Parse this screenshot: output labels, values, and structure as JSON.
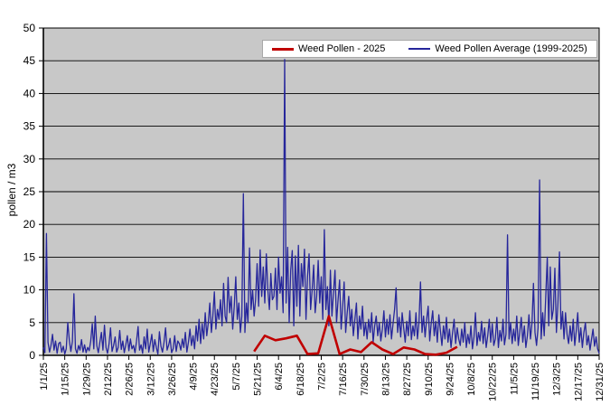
{
  "chart_data": {
    "type": "line",
    "title": "",
    "xlabel": "",
    "ylabel": "pollen / m3",
    "ylim": [
      0,
      50
    ],
    "y_ticks": [
      0,
      5,
      10,
      15,
      20,
      25,
      30,
      35,
      40,
      45,
      50
    ],
    "grid": "horizontal-black-on-gray",
    "plot_bg": "#c8c8c8",
    "legend_position": "top-center-inside",
    "x_tick_interval_days": 14,
    "x_tick_labels": [
      "1/1/25",
      "1/15/25",
      "1/29/25",
      "2/12/25",
      "2/26/25",
      "3/12/25",
      "3/26/25",
      "4/9/25",
      "4/23/25",
      "5/7/25",
      "5/21/25",
      "6/4/25",
      "6/18/25",
      "7/2/25",
      "7/16/25",
      "7/30/25",
      "8/13/25",
      "8/27/25",
      "9/10/25",
      "9/24/25",
      "10/8/25",
      "10/22/25",
      "11/5/25",
      "11/19/25",
      "12/3/25",
      "12/17/25",
      "12/31/25"
    ],
    "series": [
      {
        "name": "Weed Pollen - 2025",
        "color": "#c00000",
        "cadence": "weekly",
        "start_day_index": 138,
        "dates": [
          "5/19/25",
          "5/26/25",
          "6/2/25",
          "6/9/25",
          "6/16/25",
          "6/23/25",
          "6/30/25",
          "7/7/25",
          "7/14/25",
          "7/21/25",
          "7/28/25",
          "8/4/25",
          "8/11/25",
          "8/18/25",
          "8/25/25",
          "9/1/25",
          "9/8/25",
          "9/15/25",
          "9/22/25",
          "9/29/25"
        ],
        "values": [
          0.6,
          3.0,
          2.3,
          2.6,
          3.0,
          0.2,
          0.3,
          6.0,
          0.2,
          0.9,
          0.5,
          2.0,
          0.9,
          0.2,
          1.2,
          0.9,
          0.2,
          0.1,
          0.4,
          1.3
        ]
      },
      {
        "name": "Weed Pollen Average (1999-2025)",
        "color": "#26269b",
        "cadence": "daily",
        "start_date": "1/1/25",
        "end_date": "12/31/25",
        "start_day_index": 0,
        "values": [
          1.2,
          0.4,
          18.6,
          2.0,
          0.5,
          1.5,
          3.2,
          0.8,
          2.2,
          0.3,
          1.8,
          2.0,
          0.5,
          1.4,
          0.2,
          1.0,
          5.0,
          2.3,
          0.6,
          2.1,
          9.4,
          1.0,
          0.3,
          1.5,
          0.8,
          2.4,
          0.5,
          1.6,
          0.4,
          1.2,
          0.7,
          2.2,
          4.8,
          1.0,
          6.0,
          1.5,
          0.4,
          2.0,
          3.5,
          0.8,
          4.6,
          1.2,
          0.3,
          1.8,
          4.2,
          0.6,
          1.5,
          2.8,
          0.5,
          1.2,
          3.8,
          0.9,
          2.2,
          0.4,
          1.6,
          3.0,
          0.7,
          2.5,
          1.0,
          1.5,
          0.4,
          2.2,
          4.4,
          0.8,
          1.6,
          0.3,
          2.8,
          1.0,
          4.0,
          0.5,
          1.8,
          3.2,
          0.6,
          2.4,
          1.2,
          0.2,
          3.6,
          1.4,
          0.5,
          2.0,
          4.2,
          0.8,
          1.5,
          2.6,
          0.4,
          1.0,
          3.0,
          0.6,
          2.2,
          1.8,
          0.8,
          2.5,
          1.2,
          3.5,
          0.5,
          2.0,
          4.0,
          1.5,
          3.0,
          1.0,
          4.5,
          2.2,
          5.5,
          1.8,
          4.8,
          2.5,
          6.5,
          3.0,
          5.0,
          8.0,
          3.5,
          6.0,
          9.7,
          4.0,
          7.0,
          5.5,
          8.5,
          4.5,
          11.0,
          6.0,
          5.0,
          11.9,
          6.5,
          9.0,
          4.0,
          7.5,
          12.0,
          5.5,
          8.0,
          3.5,
          6.0,
          24.7,
          3.5,
          8.0,
          5.0,
          16.4,
          7.0,
          10.0,
          6.0,
          8.5,
          14.0,
          7.5,
          16.1,
          9.0,
          13.5,
          8.0,
          15.5,
          10.0,
          7.0,
          12.5,
          8.5,
          9.0,
          13.3,
          7.0,
          15.0,
          9.5,
          12.0,
          6.5,
          45.2,
          8.0,
          16.5,
          5.0,
          13.0,
          16.0,
          4.5,
          15.2,
          7.5,
          16.8,
          6.0,
          14.0,
          10.5,
          16.2,
          5.5,
          12.0,
          15.5,
          7.0,
          10.0,
          13.8,
          6.5,
          9.0,
          14.5,
          8.0,
          12.0,
          5.5,
          19.2,
          7.0,
          10.5,
          4.5,
          13.0,
          6.0,
          9.5,
          13.0,
          5.0,
          8.5,
          11.5,
          4.0,
          7.5,
          11.2,
          3.5,
          6.5,
          9.0,
          4.5,
          7.0,
          3.0,
          5.5,
          8.0,
          2.5,
          6.0,
          4.0,
          7.5,
          3.0,
          5.0,
          2.5,
          5.5,
          3.5,
          6.5,
          2.0,
          4.5,
          6.0,
          3.0,
          5.0,
          2.2,
          4.0,
          6.8,
          2.8,
          5.5,
          3.2,
          6.2,
          2.5,
          4.8,
          7.0,
          10.3,
          3.5,
          5.8,
          2.8,
          6.5,
          4.2,
          2.0,
          5.2,
          3.0,
          6.8,
          2.4,
          4.5,
          3.0,
          6.5,
          2.5,
          5.0,
          11.2,
          3.5,
          6.0,
          2.8,
          5.5,
          7.5,
          2.2,
          4.8,
          6.8,
          3.0,
          5.2,
          2.0,
          6.2,
          3.8,
          1.5,
          4.5,
          2.5,
          5.8,
          2.0,
          4.0,
          1.2,
          3.5,
          5.5,
          1.8,
          4.2,
          2.5,
          1.5,
          4.0,
          2.0,
          5.0,
          1.2,
          3.2,
          1.8,
          4.5,
          1.0,
          2.8,
          6.5,
          1.5,
          3.5,
          2.2,
          5.2,
          1.8,
          4.2,
          1.2,
          3.0,
          5.5,
          2.0,
          4.8,
          1.5,
          2.5,
          5.8,
          1.2,
          3.8,
          2.2,
          5.5,
          1.6,
          3.2,
          18.4,
          2.5,
          5.0,
          1.8,
          4.0,
          2.2,
          6.0,
          1.5,
          3.5,
          5.8,
          2.0,
          4.5,
          1.2,
          3.0,
          6.2,
          2.5,
          5.0,
          11.0,
          3.5,
          1.5,
          4.2,
          26.8,
          2.5,
          6.5,
          3.0,
          9.0,
          15.0,
          4.5,
          13.5,
          5.5,
          7.0,
          13.3,
          3.5,
          8.0,
          15.8,
          4.0,
          6.7,
          2.5,
          6.5,
          3.2,
          1.8,
          4.5,
          2.2,
          5.5,
          1.5,
          3.8,
          6.5,
          2.0,
          4.2,
          1.2,
          3.5,
          5.0,
          1.6,
          3.0,
          0.8,
          2.5,
          4.0,
          1.4,
          2.8,
          1.0,
          0.3
        ]
      }
    ]
  },
  "legend": {
    "items": [
      {
        "label": "Weed Pollen - 2025",
        "color": "#c00000"
      },
      {
        "label": "Weed Pollen Average (1999-2025)",
        "color": "#26269b"
      }
    ]
  }
}
